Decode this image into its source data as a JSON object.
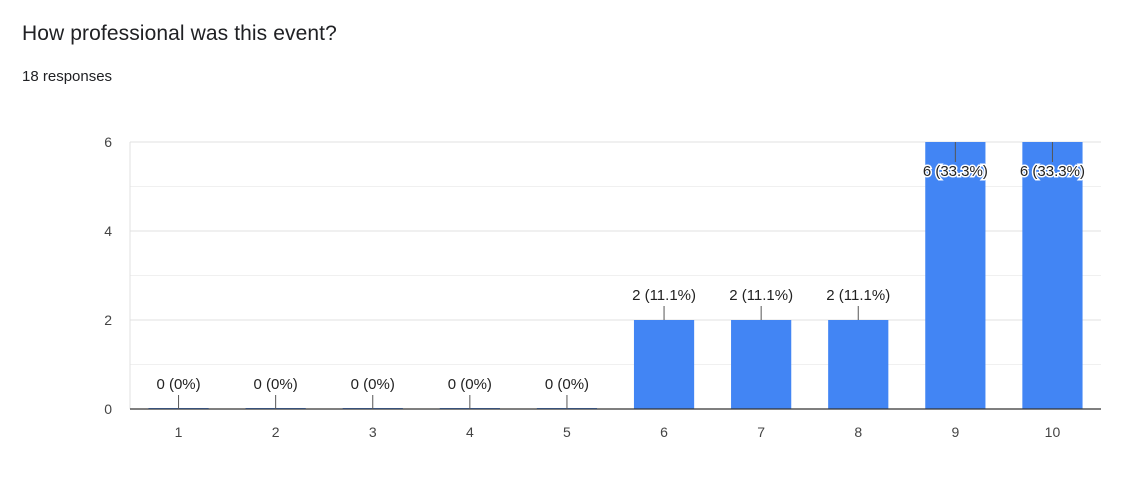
{
  "question": {
    "title": "How professional was this event?",
    "responses": "18 responses"
  },
  "colors": {
    "bar": "#4285f4",
    "grid": "#e8e8e8",
    "axis": "#333333",
    "text": "#202124"
  },
  "chart_data": {
    "type": "bar",
    "categories": [
      "1",
      "2",
      "3",
      "4",
      "5",
      "6",
      "7",
      "8",
      "9",
      "10"
    ],
    "values": [
      0,
      0,
      0,
      0,
      0,
      2,
      2,
      2,
      6,
      6
    ],
    "data_labels": [
      "0 (0%)",
      "0 (0%)",
      "0 (0%)",
      "0 (0%)",
      "0 (0%)",
      "2 (11.1%)",
      "2 (11.1%)",
      "2 (11.1%)",
      "6 (33.3%)",
      "6 (33.3%)"
    ],
    "yticks": [
      0,
      2,
      4,
      6
    ],
    "ylim": [
      0,
      6
    ],
    "grid": true
  }
}
